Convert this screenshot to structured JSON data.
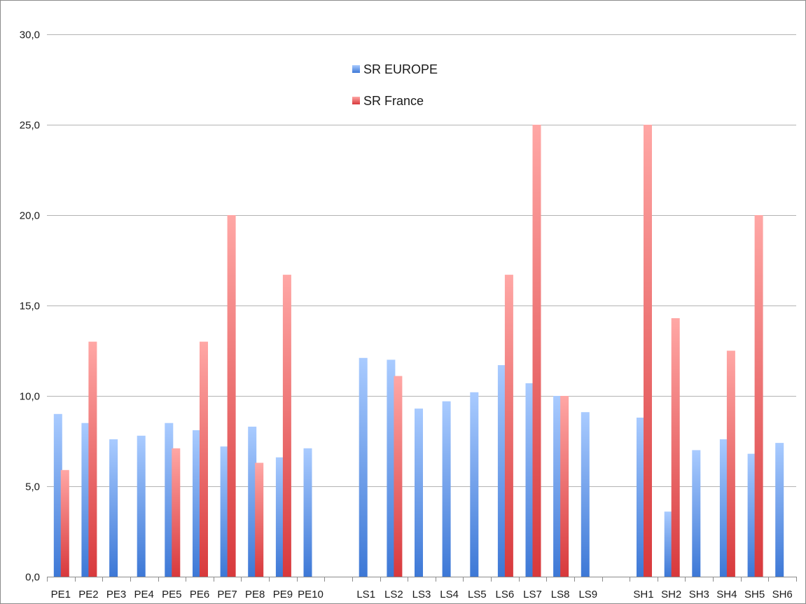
{
  "chart_data": {
    "type": "bar",
    "title": "",
    "xlabel": "",
    "ylabel": "",
    "ylim": [
      0,
      30
    ],
    "yticks": [
      "0,0",
      "5,0",
      "10,0",
      "15,0",
      "20,0",
      "25,0",
      "30,0"
    ],
    "grid": true,
    "legend_position": "top-center",
    "categories": [
      "PE1",
      "PE2",
      "PE3",
      "PE4",
      "PE5",
      "PE6",
      "PE7",
      "PE8",
      "PE9",
      "PE10",
      "",
      "LS1",
      "LS2",
      "LS3",
      "LS4",
      "LS5",
      "LS6",
      "LS7",
      "LS8",
      "LS9",
      "",
      "SH1",
      "SH2",
      "SH3",
      "SH4",
      "SH5",
      "SH6"
    ],
    "series": [
      {
        "name": "SR EUROPE",
        "color": "#4f86d9",
        "values": [
          9.0,
          8.5,
          7.6,
          7.8,
          8.5,
          8.1,
          7.2,
          8.3,
          6.6,
          7.1,
          null,
          12.1,
          12.0,
          9.3,
          9.7,
          10.2,
          11.7,
          10.7,
          10.0,
          9.1,
          null,
          8.8,
          3.6,
          7.0,
          7.6,
          6.8,
          7.4
        ]
      },
      {
        "name": "SR France",
        "color": "#d9474a",
        "values": [
          5.9,
          13.0,
          null,
          null,
          7.1,
          13.0,
          20.0,
          6.3,
          16.7,
          null,
          null,
          null,
          11.1,
          null,
          null,
          null,
          16.7,
          25.0,
          10.0,
          null,
          null,
          25.0,
          14.3,
          null,
          12.5,
          20.0,
          null
        ]
      }
    ]
  }
}
